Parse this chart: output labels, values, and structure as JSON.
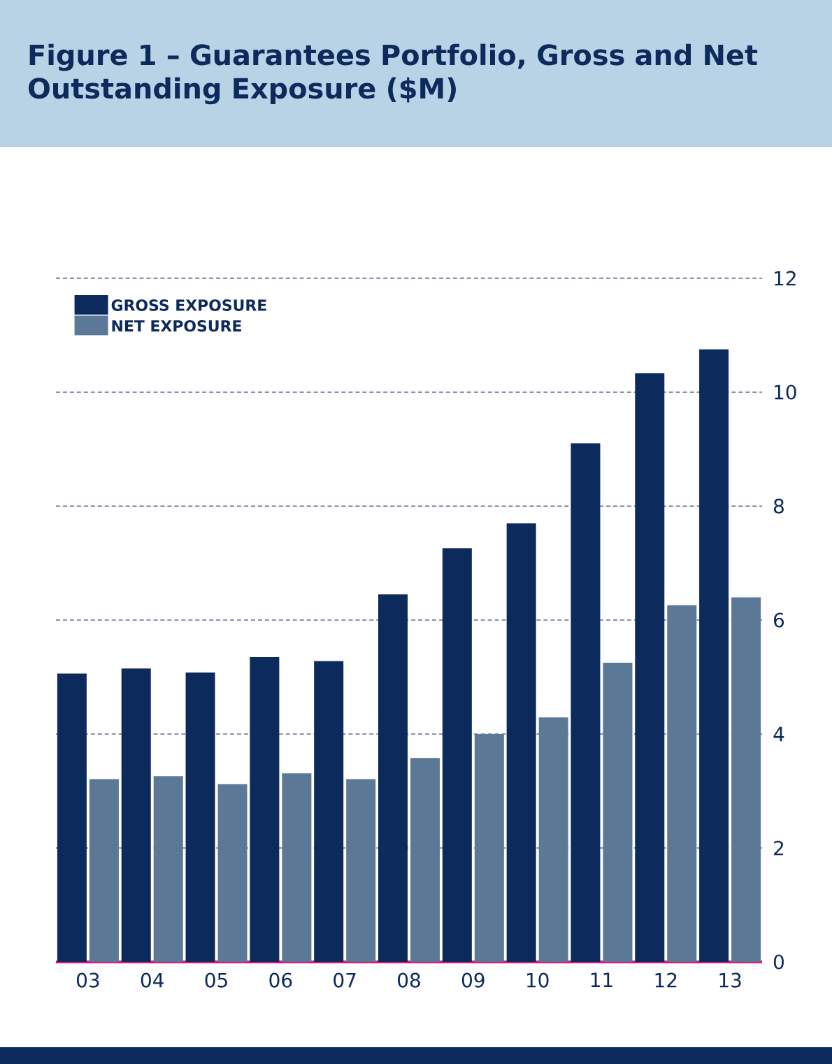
{
  "chart_data": {
    "type": "bar",
    "title": "Figure 1 – Guarantees Portfolio, Gross and Net Outstanding Exposure ($M)",
    "categories": [
      "03",
      "04",
      "05",
      "06",
      "07",
      "08",
      "09",
      "10",
      "11",
      "12",
      "13"
    ],
    "series": [
      {
        "name": "GROSS EXPOSURE",
        "color": "#0d2a5c",
        "values": [
          5.06,
          5.15,
          5.08,
          5.35,
          5.28,
          6.45,
          7.26,
          7.7,
          9.1,
          10.33,
          10.75
        ]
      },
      {
        "name": "NET EXPOSURE",
        "color": "#5b7896",
        "values": [
          3.21,
          3.26,
          3.12,
          3.31,
          3.21,
          3.58,
          4.0,
          4.29,
          5.25,
          6.26,
          6.4
        ]
      }
    ],
    "ylim": [
      0,
      12
    ],
    "yticks": [
      0,
      2,
      4,
      6,
      8,
      10,
      12
    ],
    "grid": "y",
    "legend": "top left"
  }
}
